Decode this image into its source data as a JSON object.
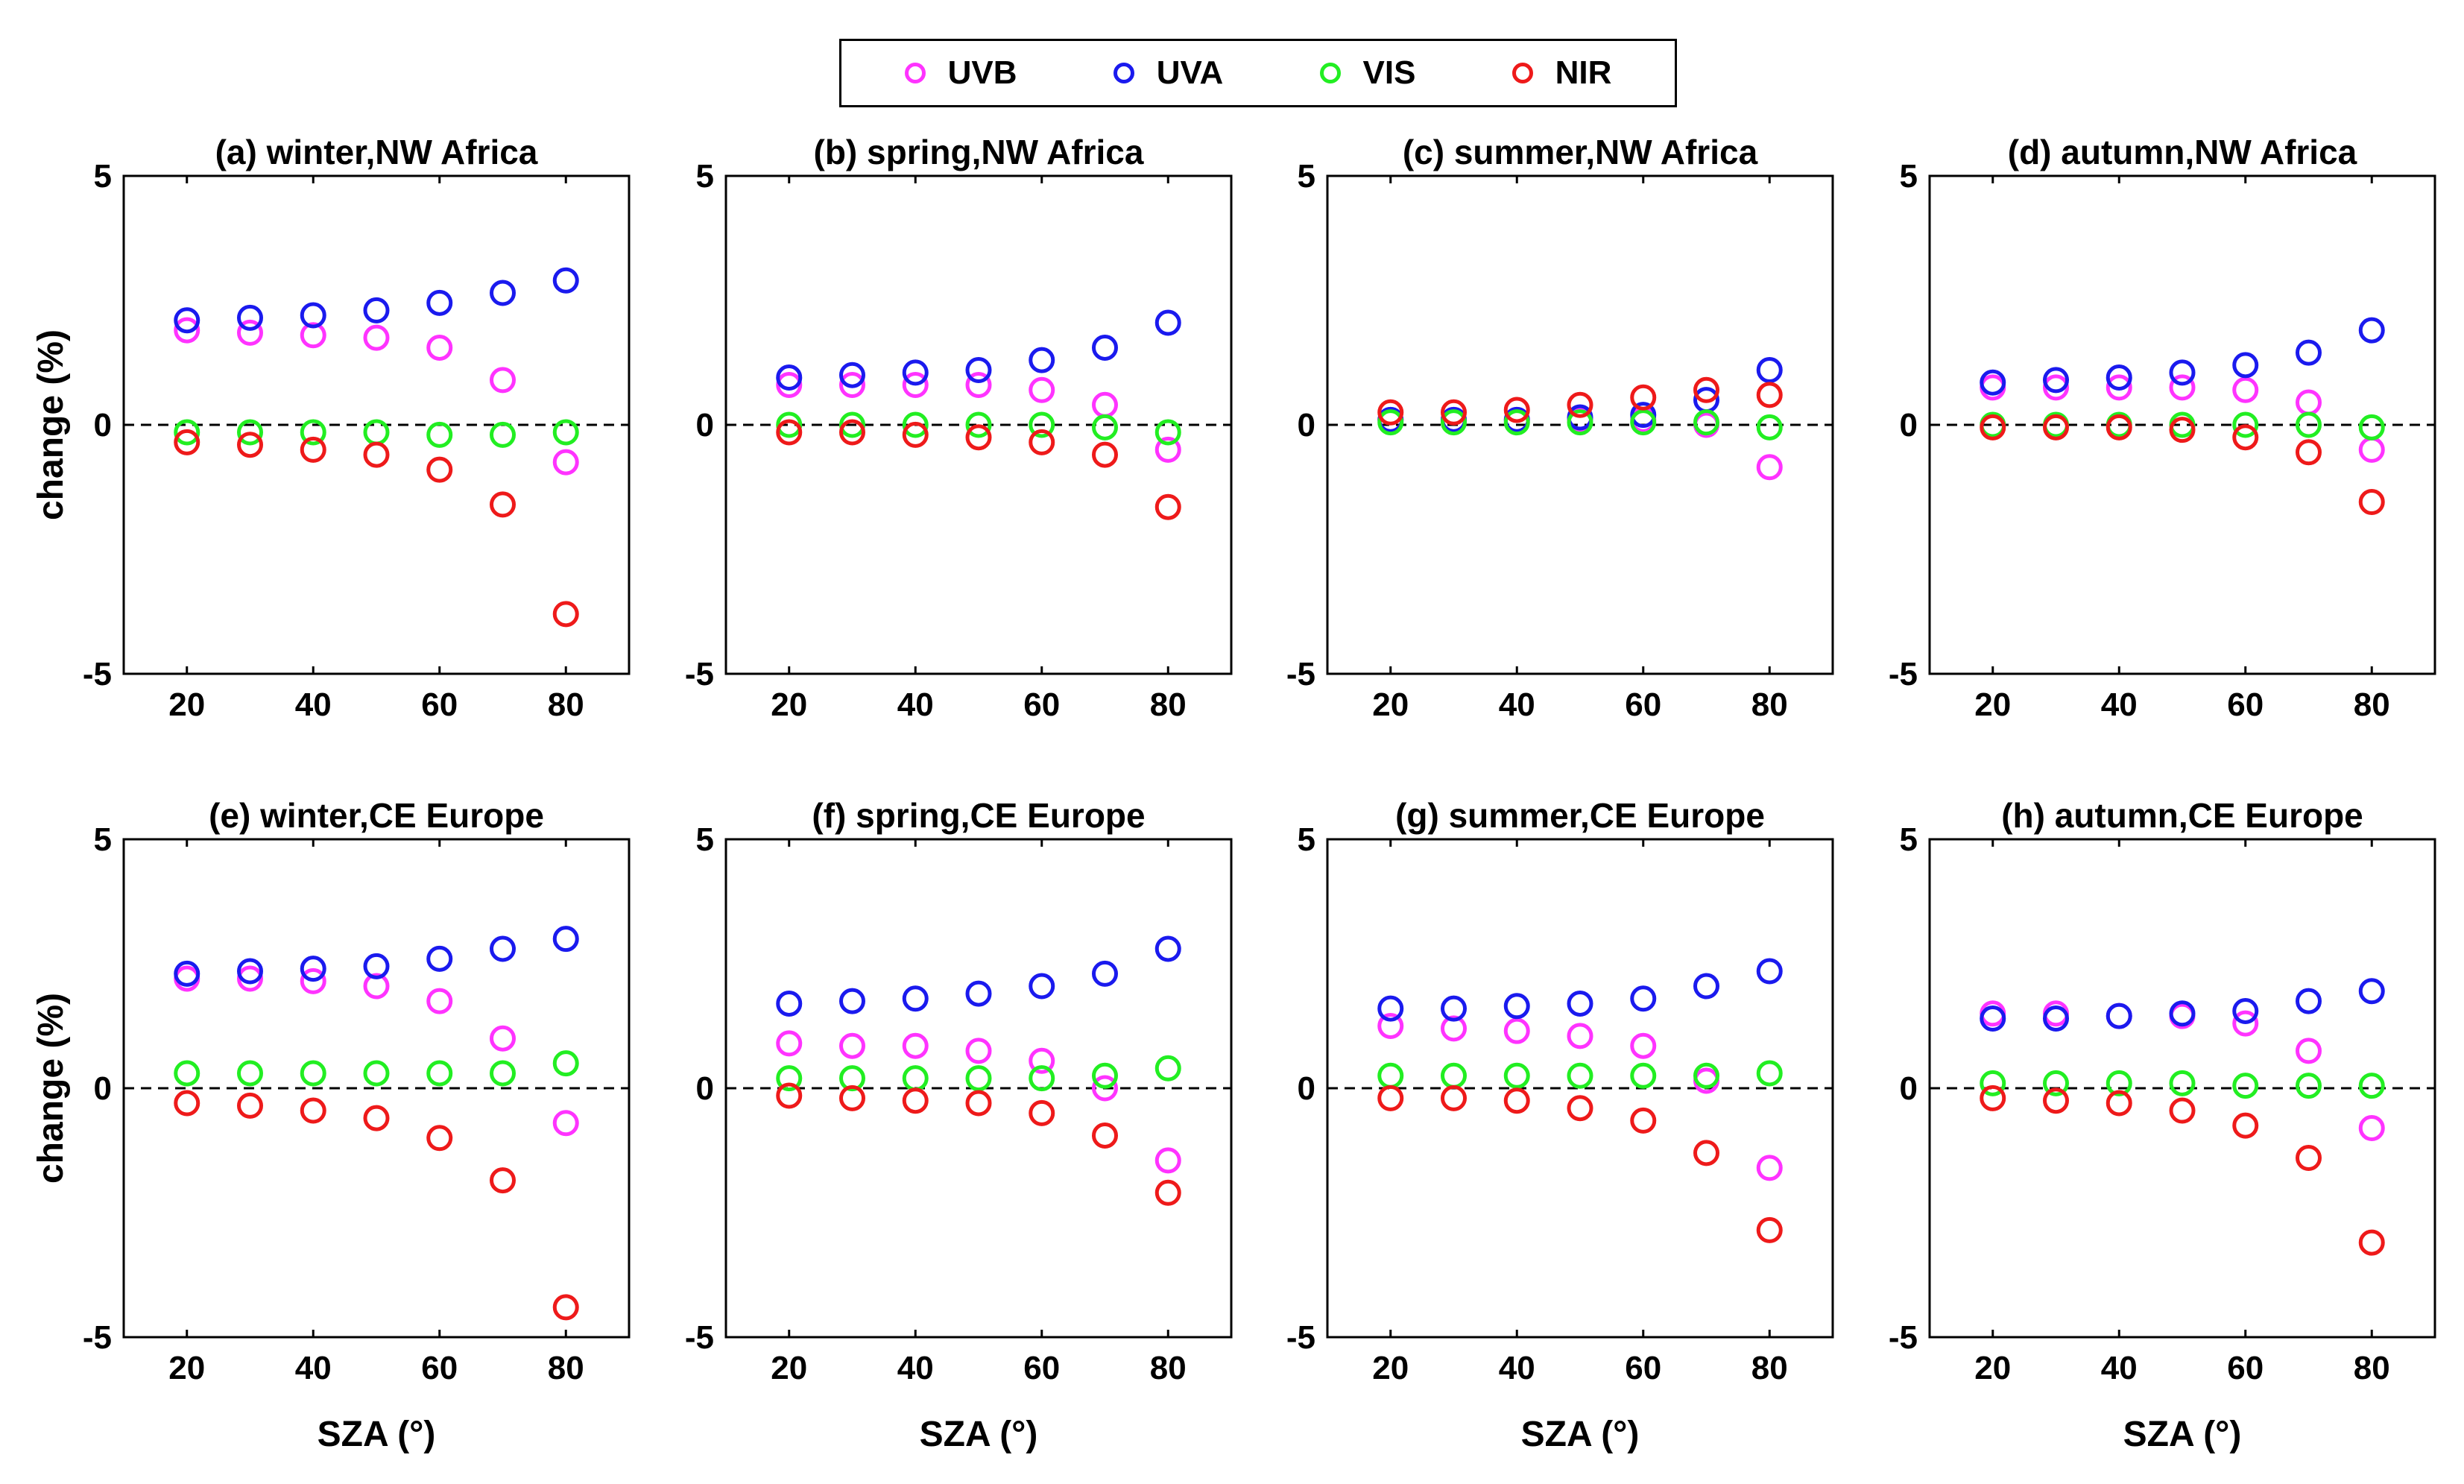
{
  "legend": {
    "entries": [
      {
        "name": "UVB",
        "color": "#ff33ff"
      },
      {
        "name": "UVA",
        "color": "#1a1aee"
      },
      {
        "name": "VIS",
        "color": "#22ee22"
      },
      {
        "name": "NIR",
        "color": "#ee1a1a"
      }
    ]
  },
  "chart_data": [
    {
      "type": "scatter",
      "title": "(a) winter,NW Africa",
      "xlabel": "",
      "ylabel": "change (%)",
      "x": [
        20,
        30,
        40,
        50,
        60,
        70,
        80
      ],
      "xticks": [
        20,
        40,
        60,
        80
      ],
      "yticks": [
        -5,
        0,
        5
      ],
      "xlim": [
        10,
        90
      ],
      "ylim": [
        -5,
        5
      ],
      "series": [
        {
          "name": "UVB",
          "values": [
            1.9,
            1.85,
            1.8,
            1.75,
            1.55,
            0.9,
            -0.75
          ]
        },
        {
          "name": "UVA",
          "values": [
            2.1,
            2.15,
            2.2,
            2.3,
            2.45,
            2.65,
            2.9
          ]
        },
        {
          "name": "VIS",
          "values": [
            -0.15,
            -0.15,
            -0.15,
            -0.15,
            -0.2,
            -0.2,
            -0.15
          ]
        },
        {
          "name": "NIR",
          "values": [
            -0.35,
            -0.4,
            -0.5,
            -0.6,
            -0.9,
            -1.6,
            -3.8
          ]
        }
      ]
    },
    {
      "type": "scatter",
      "title": "(b) spring,NW Africa",
      "xlabel": "",
      "ylabel": "",
      "x": [
        20,
        30,
        40,
        50,
        60,
        70,
        80
      ],
      "xticks": [
        20,
        40,
        60,
        80
      ],
      "yticks": [
        -5,
        0,
        5
      ],
      "xlim": [
        10,
        90
      ],
      "ylim": [
        -5,
        5
      ],
      "series": [
        {
          "name": "UVB",
          "values": [
            0.8,
            0.8,
            0.8,
            0.8,
            0.7,
            0.4,
            -0.5
          ]
        },
        {
          "name": "UVA",
          "values": [
            0.95,
            1.0,
            1.05,
            1.1,
            1.3,
            1.55,
            2.05
          ]
        },
        {
          "name": "VIS",
          "values": [
            0.0,
            0.0,
            0.0,
            0.0,
            0.0,
            -0.05,
            -0.15
          ]
        },
        {
          "name": "NIR",
          "values": [
            -0.15,
            -0.15,
            -0.2,
            -0.25,
            -0.35,
            -0.6,
            -1.65
          ]
        }
      ]
    },
    {
      "type": "scatter",
      "title": "(c) summer,NW Africa",
      "xlabel": "",
      "ylabel": "",
      "x": [
        20,
        30,
        40,
        50,
        60,
        70,
        80
      ],
      "xticks": [
        20,
        40,
        60,
        80
      ],
      "yticks": [
        -5,
        0,
        5
      ],
      "xlim": [
        10,
        90
      ],
      "ylim": [
        -5,
        5
      ],
      "series": [
        {
          "name": "UVB",
          "values": [
            0.1,
            0.1,
            0.1,
            0.1,
            0.1,
            0.0,
            -0.85
          ]
        },
        {
          "name": "UVA",
          "values": [
            0.1,
            0.1,
            0.1,
            0.15,
            0.2,
            0.5,
            1.1
          ]
        },
        {
          "name": "VIS",
          "values": [
            0.05,
            0.05,
            0.05,
            0.05,
            0.05,
            0.05,
            -0.05
          ]
        },
        {
          "name": "NIR",
          "values": [
            0.25,
            0.25,
            0.3,
            0.4,
            0.55,
            0.7,
            0.6
          ]
        }
      ]
    },
    {
      "type": "scatter",
      "title": "(d) autumn,NW Africa",
      "xlabel": "",
      "ylabel": "",
      "x": [
        20,
        30,
        40,
        50,
        60,
        70,
        80
      ],
      "xticks": [
        20,
        40,
        60,
        80
      ],
      "yticks": [
        -5,
        0,
        5
      ],
      "xlim": [
        10,
        90
      ],
      "ylim": [
        -5,
        5
      ],
      "series": [
        {
          "name": "UVB",
          "values": [
            0.75,
            0.75,
            0.75,
            0.75,
            0.7,
            0.45,
            -0.5
          ]
        },
        {
          "name": "UVA",
          "values": [
            0.85,
            0.9,
            0.95,
            1.05,
            1.2,
            1.45,
            1.9
          ]
        },
        {
          "name": "VIS",
          "values": [
            0.0,
            0.0,
            0.0,
            0.0,
            0.0,
            0.0,
            -0.05
          ]
        },
        {
          "name": "NIR",
          "values": [
            -0.05,
            -0.05,
            -0.05,
            -0.1,
            -0.25,
            -0.55,
            -1.55
          ]
        }
      ]
    },
    {
      "type": "scatter",
      "title": "(e) winter,CE Europe",
      "xlabel": "SZA (°)",
      "ylabel": "change (%)",
      "x": [
        20,
        30,
        40,
        50,
        60,
        70,
        80
      ],
      "xticks": [
        20,
        40,
        60,
        80
      ],
      "yticks": [
        -5,
        0,
        5
      ],
      "xlim": [
        10,
        90
      ],
      "ylim": [
        -5,
        5
      ],
      "series": [
        {
          "name": "UVB",
          "values": [
            2.2,
            2.2,
            2.15,
            2.05,
            1.75,
            1.0,
            -0.7
          ]
        },
        {
          "name": "UVA",
          "values": [
            2.3,
            2.35,
            2.4,
            2.45,
            2.6,
            2.8,
            3.0
          ]
        },
        {
          "name": "VIS",
          "values": [
            0.3,
            0.3,
            0.3,
            0.3,
            0.3,
            0.3,
            0.5
          ]
        },
        {
          "name": "NIR",
          "values": [
            -0.3,
            -0.35,
            -0.45,
            -0.6,
            -1.0,
            -1.85,
            -4.4
          ]
        }
      ]
    },
    {
      "type": "scatter",
      "title": "(f) spring,CE Europe",
      "xlabel": "SZA (°)",
      "ylabel": "",
      "x": [
        20,
        30,
        40,
        50,
        60,
        70,
        80
      ],
      "xticks": [
        20,
        40,
        60,
        80
      ],
      "yticks": [
        -5,
        0,
        5
      ],
      "xlim": [
        10,
        90
      ],
      "ylim": [
        -5,
        5
      ],
      "series": [
        {
          "name": "UVB",
          "values": [
            0.9,
            0.85,
            0.85,
            0.75,
            0.55,
            0.0,
            -1.45
          ]
        },
        {
          "name": "UVA",
          "values": [
            1.7,
            1.75,
            1.8,
            1.9,
            2.05,
            2.3,
            2.8
          ]
        },
        {
          "name": "VIS",
          "values": [
            0.2,
            0.2,
            0.2,
            0.2,
            0.2,
            0.25,
            0.4
          ]
        },
        {
          "name": "NIR",
          "values": [
            -0.15,
            -0.2,
            -0.25,
            -0.3,
            -0.5,
            -0.95,
            -2.1
          ]
        }
      ]
    },
    {
      "type": "scatter",
      "title": "(g) summer,CE Europe",
      "xlabel": "SZA (°)",
      "ylabel": "",
      "x": [
        20,
        30,
        40,
        50,
        60,
        70,
        80
      ],
      "xticks": [
        20,
        40,
        60,
        80
      ],
      "yticks": [
        -5,
        0,
        5
      ],
      "xlim": [
        10,
        90
      ],
      "ylim": [
        -5,
        5
      ],
      "series": [
        {
          "name": "UVB",
          "values": [
            1.25,
            1.2,
            1.15,
            1.05,
            0.85,
            0.15,
            -1.6
          ]
        },
        {
          "name": "UVA",
          "values": [
            1.6,
            1.6,
            1.65,
            1.7,
            1.8,
            2.05,
            2.35
          ]
        },
        {
          "name": "VIS",
          "values": [
            0.25,
            0.25,
            0.25,
            0.25,
            0.25,
            0.25,
            0.3
          ]
        },
        {
          "name": "NIR",
          "values": [
            -0.2,
            -0.2,
            -0.25,
            -0.4,
            -0.65,
            -1.3,
            -2.85
          ]
        }
      ]
    },
    {
      "type": "scatter",
      "title": "(h) autumn,CE Europe",
      "xlabel": "SZA (°)",
      "ylabel": "",
      "x": [
        20,
        30,
        40,
        50,
        60,
        70,
        80
      ],
      "xticks": [
        20,
        40,
        60,
        80
      ],
      "yticks": [
        -5,
        0,
        5
      ],
      "xlim": [
        10,
        90
      ],
      "ylim": [
        -5,
        5
      ],
      "series": [
        {
          "name": "UVB",
          "values": [
            1.5,
            1.5,
            1.45,
            1.45,
            1.3,
            0.75,
            -0.8
          ]
        },
        {
          "name": "UVA",
          "values": [
            1.4,
            1.4,
            1.45,
            1.5,
            1.55,
            1.75,
            1.95
          ]
        },
        {
          "name": "VIS",
          "values": [
            0.1,
            0.1,
            0.1,
            0.1,
            0.05,
            0.05,
            0.05
          ]
        },
        {
          "name": "NIR",
          "values": [
            -0.2,
            -0.25,
            -0.3,
            -0.45,
            -0.75,
            -1.4,
            -3.1
          ]
        }
      ]
    }
  ]
}
